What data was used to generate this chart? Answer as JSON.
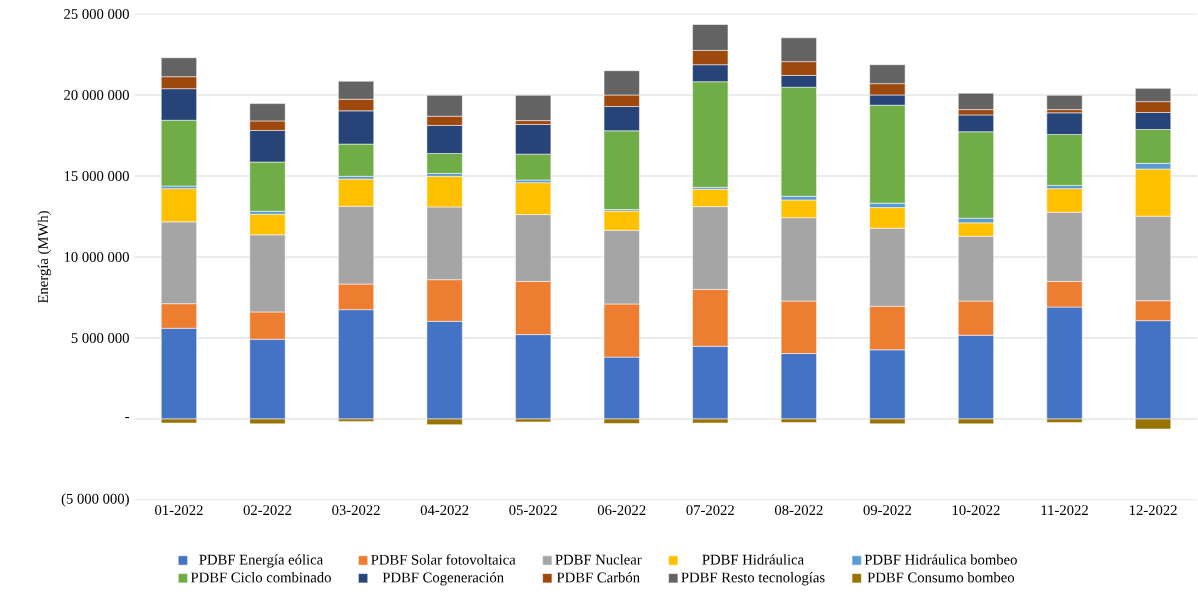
{
  "chart_data": {
    "type": "bar",
    "stacked": true,
    "ylabel": "Energía (MWh)",
    "categories": [
      "01-2022",
      "02-2022",
      "03-2022",
      "04-2022",
      "05-2022",
      "06-2022",
      "07-2022",
      "08-2022",
      "09-2022",
      "10-2022",
      "11-2022",
      "12-2022"
    ],
    "ylim": [
      -5000000,
      25000000
    ],
    "yticks": [
      {
        "value": -5000000,
        "label": "(5 000 000)"
      },
      {
        "value": 0,
        "label": "-"
      },
      {
        "value": 5000000,
        "label": "5 000 000"
      },
      {
        "value": 10000000,
        "label": "10 000 000"
      },
      {
        "value": 15000000,
        "label": "15 000 000"
      },
      {
        "value": 20000000,
        "label": "20 000 000"
      },
      {
        "value": 25000000,
        "label": "25 000 000"
      }
    ],
    "grid": "y",
    "legend": "bottom",
    "series": [
      {
        "name": "PDBF Energía eólica",
        "color": "#4472c4",
        "values": [
          5600000,
          4920000,
          6750000,
          6030000,
          5210000,
          3820000,
          4490000,
          4040000,
          4270000,
          5170000,
          6910000,
          6070000
        ]
      },
      {
        "name": "PDBF Solar fotovoltaica",
        "color": "#ed7d31",
        "values": [
          1520000,
          1690000,
          1580000,
          2570000,
          3280000,
          3280000,
          3510000,
          3240000,
          2690000,
          2110000,
          1580000,
          1230000
        ]
      },
      {
        "name": "PDBF Nuclear",
        "color": "#a5a5a5",
        "values": [
          5050000,
          4760000,
          4800000,
          4490000,
          4130000,
          4550000,
          5110000,
          5150000,
          4820000,
          4000000,
          4270000,
          5220000
        ]
      },
      {
        "name": "PDBF Hidráulica",
        "color": "#ffc000",
        "values": [
          2050000,
          1270000,
          1680000,
          1890000,
          1970000,
          1190000,
          1070000,
          1090000,
          1270000,
          830000,
          1460000,
          2910000
        ]
      },
      {
        "name": "PDBF Hidráulica bombeo",
        "color": "#5b9bd5",
        "values": [
          160000,
          180000,
          170000,
          180000,
          160000,
          90000,
          120000,
          230000,
          270000,
          280000,
          200000,
          350000
        ]
      },
      {
        "name": "PDBF Ciclo combinado",
        "color": "#70ad47",
        "values": [
          4060000,
          3040000,
          1990000,
          1230000,
          1600000,
          4860000,
          6520000,
          6730000,
          6050000,
          5340000,
          3140000,
          2090000
        ]
      },
      {
        "name": "PDBF Cogeneración",
        "color": "#264478",
        "values": [
          1950000,
          1950000,
          2050000,
          1730000,
          1830000,
          1500000,
          1050000,
          730000,
          630000,
          1040000,
          1340000,
          1050000
        ]
      },
      {
        "name": "PDBF Carbón",
        "color": "#9e480e",
        "values": [
          740000,
          590000,
          720000,
          570000,
          240000,
          710000,
          880000,
          850000,
          700000,
          330000,
          200000,
          670000
        ]
      },
      {
        "name": "PDBF Resto tecnologías",
        "color": "#636363",
        "values": [
          1170000,
          1070000,
          1110000,
          1290000,
          1560000,
          1500000,
          1600000,
          1470000,
          1170000,
          1010000,
          880000,
          820000
        ]
      },
      {
        "name": "PDBF Consumo bombeo",
        "color": "#997300",
        "values": [
          -250000,
          -300000,
          -150000,
          -350000,
          -180000,
          -280000,
          -250000,
          -220000,
          -300000,
          -300000,
          -220000,
          -620000
        ]
      }
    ]
  }
}
